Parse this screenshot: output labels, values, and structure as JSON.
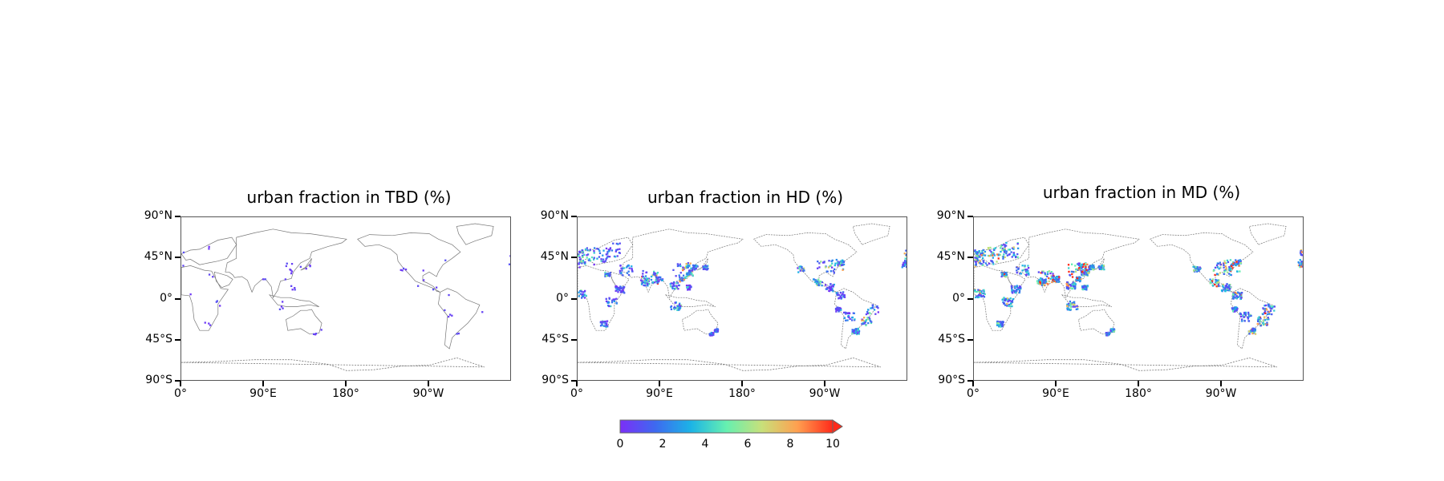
{
  "panels": [
    {
      "title": "urban fraction in TBD (%)",
      "intensity": "low"
    },
    {
      "title": "urban fraction in HD (%)",
      "intensity": "medium"
    },
    {
      "title": "urban fraction in MD (%)",
      "intensity": "high"
    }
  ],
  "axes": {
    "y_ticks": [
      "90°N",
      "45°N",
      "0°",
      "45°S",
      "90°S"
    ],
    "x_ticks": [
      "0°",
      "90°E",
      "180°",
      "90°W"
    ]
  },
  "colorbar": {
    "ticks": [
      "0",
      "2",
      "4",
      "6",
      "8",
      "10"
    ],
    "min": 0,
    "max": 10,
    "extend": "max",
    "colormap": "rainbow",
    "colors": [
      "#7b2ff7",
      "#3d6af0",
      "#1cb4e6",
      "#66f0b0",
      "#c8e07a",
      "#ffa050",
      "#ff2a1a"
    ]
  }
}
